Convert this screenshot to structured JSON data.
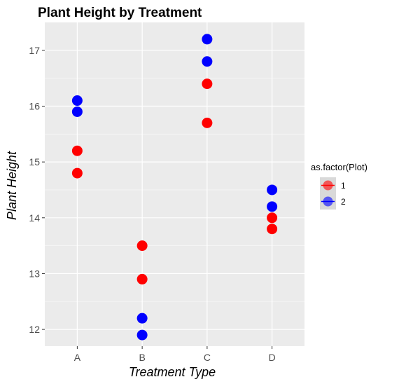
{
  "chart_data": {
    "type": "scatter",
    "title": "Plant Height by Treatment",
    "xlabel": "Treatment Type",
    "ylabel": "Plant Height",
    "categories": [
      "A",
      "B",
      "C",
      "D"
    ],
    "ylim": [
      11.7,
      17.5
    ],
    "yticks": [
      12,
      13,
      14,
      15,
      16,
      17
    ],
    "grid": true,
    "legend": {
      "title": "as.factor(Plot)",
      "position": "right"
    },
    "series": [
      {
        "name": "1",
        "color": "#ff0000",
        "points": [
          {
            "x": "A",
            "y": 15.2
          },
          {
            "x": "A",
            "y": 14.8
          },
          {
            "x": "B",
            "y": 13.5
          },
          {
            "x": "B",
            "y": 12.9
          },
          {
            "x": "C",
            "y": 16.4
          },
          {
            "x": "C",
            "y": 15.7
          },
          {
            "x": "D",
            "y": 14.0
          },
          {
            "x": "D",
            "y": 13.8
          }
        ]
      },
      {
        "name": "2",
        "color": "#0000ff",
        "points": [
          {
            "x": "A",
            "y": 16.1
          },
          {
            "x": "A",
            "y": 15.9
          },
          {
            "x": "B",
            "y": 12.2
          },
          {
            "x": "B",
            "y": 11.9
          },
          {
            "x": "C",
            "y": 17.2
          },
          {
            "x": "C",
            "y": 16.8
          },
          {
            "x": "D",
            "y": 14.5
          },
          {
            "x": "D",
            "y": 14.2
          }
        ]
      }
    ]
  }
}
